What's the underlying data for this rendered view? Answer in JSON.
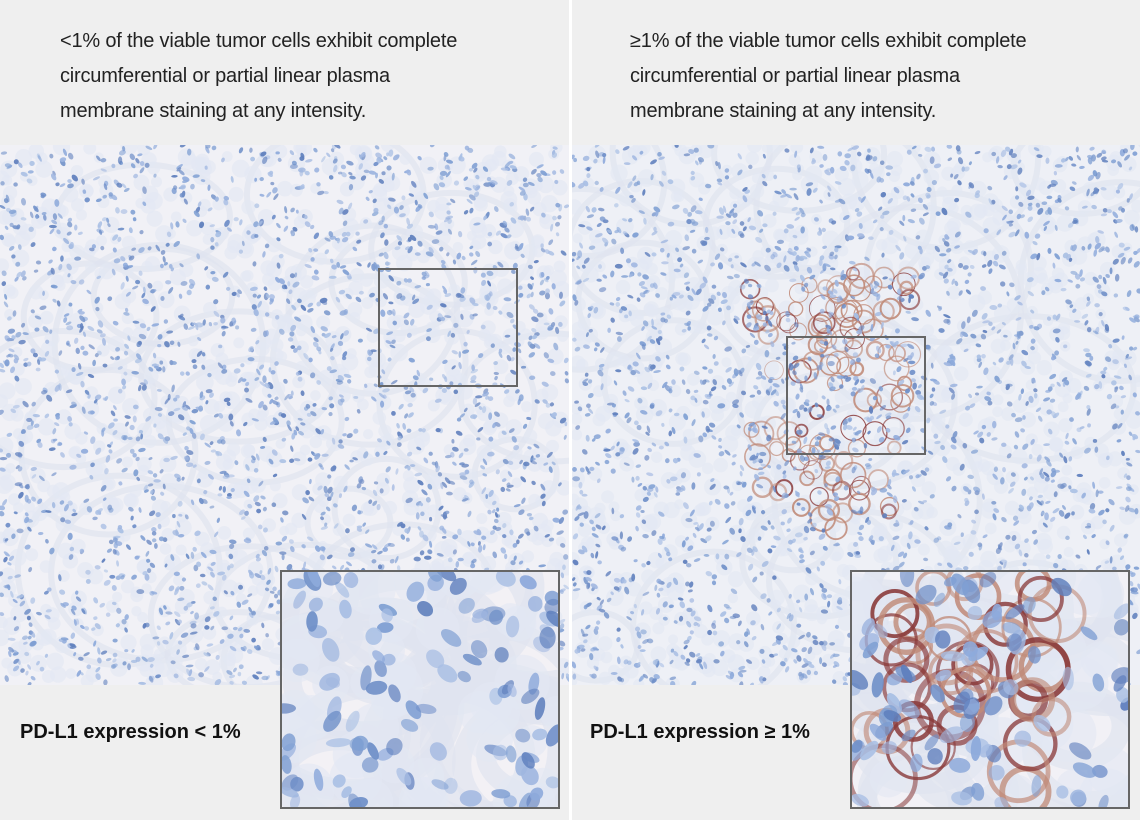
{
  "panels": [
    {
      "description": [
        "<1% of the viable tumor cells exhibit complete",
        "circumferential or partial linear plasma",
        "membrane staining at any intensity."
      ],
      "label": "PD-L1 expression < 1%"
    },
    {
      "description": [
        "≥1% of the viable tumor cells exhibit complete",
        "circumferential or partial linear plasma",
        "membrane staining at any intensity."
      ],
      "label": "PD-L1 expression ≥ 1%"
    }
  ]
}
